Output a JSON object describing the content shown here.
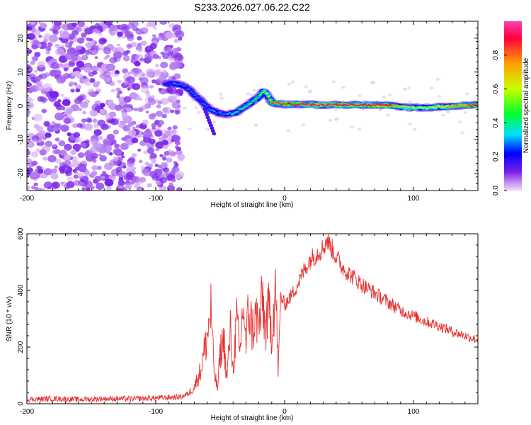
{
  "title": "S233.2026.027.06.22.C22",
  "chart_data": [
    {
      "type": "heatmap",
      "name": "spectrogram",
      "xlabel": "Height of straight line (km)",
      "ylabel": "Frequency (Hz)",
      "xlim": [
        -200,
        150
      ],
      "ylim": [
        -25,
        25
      ],
      "xticks": [
        -200,
        -100,
        0,
        100
      ],
      "yticks": [
        -20,
        -10,
        0,
        10,
        20
      ],
      "colorbar": {
        "label": "Normalized spectral amplitude",
        "range": [
          0,
          1
        ],
        "ticks": [
          "0.0",
          "0.2",
          "0.4",
          "0.6",
          "0.8"
        ],
        "tick_values": [
          0.0,
          0.2,
          0.4,
          0.6,
          0.8
        ],
        "colors": [
          "#f2d9f9",
          "#bf8cf2",
          "#7a1fe8",
          "#0000ff",
          "#00e0ff",
          "#00ff30",
          "#c8ff00",
          "#ffa000",
          "#ff0040",
          "#ff40b0"
        ]
      },
      "ridge": {
        "x": [
          -92,
          -85,
          -78,
          -72,
          -65,
          -58,
          -52,
          -45,
          -38,
          -30,
          -22,
          -16,
          -13,
          -10,
          -6,
          0,
          10,
          25,
          50,
          80,
          95,
          110,
          150
        ],
        "freq": [
          6.5,
          6.5,
          6,
          4,
          1.5,
          -1,
          -2,
          -2.5,
          -2,
          0,
          2,
          4.5,
          3,
          1,
          0.8,
          0.5,
          0.5,
          0.3,
          0.3,
          0.2,
          -0.5,
          -0.5,
          0.3
        ],
        "amplitude": [
          0.25,
          0.3,
          0.3,
          0.3,
          0.28,
          0.3,
          0.3,
          0.3,
          0.4,
          0.45,
          0.5,
          0.55,
          0.7,
          0.85,
          0.9,
          0.95,
          0.95,
          1.0,
          0.98,
          0.97,
          0.6,
          0.6,
          0.95
        ]
      },
      "noise_region_x": [
        -200,
        -80
      ],
      "noise_amplitude_range": [
        0.02,
        0.12
      ]
    },
    {
      "type": "line",
      "name": "snr",
      "xlabel": "Height of straight line (km)",
      "ylabel": "SNR (10 * v/v)",
      "xlim": [
        -200,
        150
      ],
      "ylim": [
        0,
        600
      ],
      "xticks": [
        -200,
        -100,
        0,
        100
      ],
      "yticks": [
        0,
        200,
        400,
        600
      ],
      "color": "#e83030",
      "series": [
        {
          "name": "SNR",
          "x": [
            -200,
            -180,
            -160,
            -140,
            -120,
            -100,
            -90,
            -80,
            -75,
            -70,
            -65,
            -60,
            -57,
            -55,
            -52,
            -50,
            -47,
            -45,
            -42,
            -40,
            -37,
            -35,
            -32,
            -30,
            -28,
            -25,
            -22,
            -20,
            -17,
            -15,
            -12,
            -10,
            -7,
            -5,
            -3,
            0,
            5,
            10,
            15,
            20,
            25,
            30,
            33,
            35,
            40,
            45,
            50,
            60,
            70,
            80,
            90,
            100,
            110,
            120,
            130,
            140,
            150
          ],
          "y": [
            15,
            18,
            15,
            18,
            17,
            20,
            22,
            25,
            35,
            60,
            120,
            240,
            340,
            120,
            50,
            180,
            230,
            80,
            260,
            120,
            300,
            160,
            360,
            200,
            340,
            260,
            310,
            270,
            370,
            260,
            330,
            250,
            420,
            120,
            380,
            350,
            380,
            420,
            470,
            510,
            530,
            550,
            580,
            560,
            520,
            480,
            460,
            420,
            390,
            360,
            330,
            310,
            290,
            275,
            255,
            240,
            225
          ]
        }
      ]
    }
  ]
}
